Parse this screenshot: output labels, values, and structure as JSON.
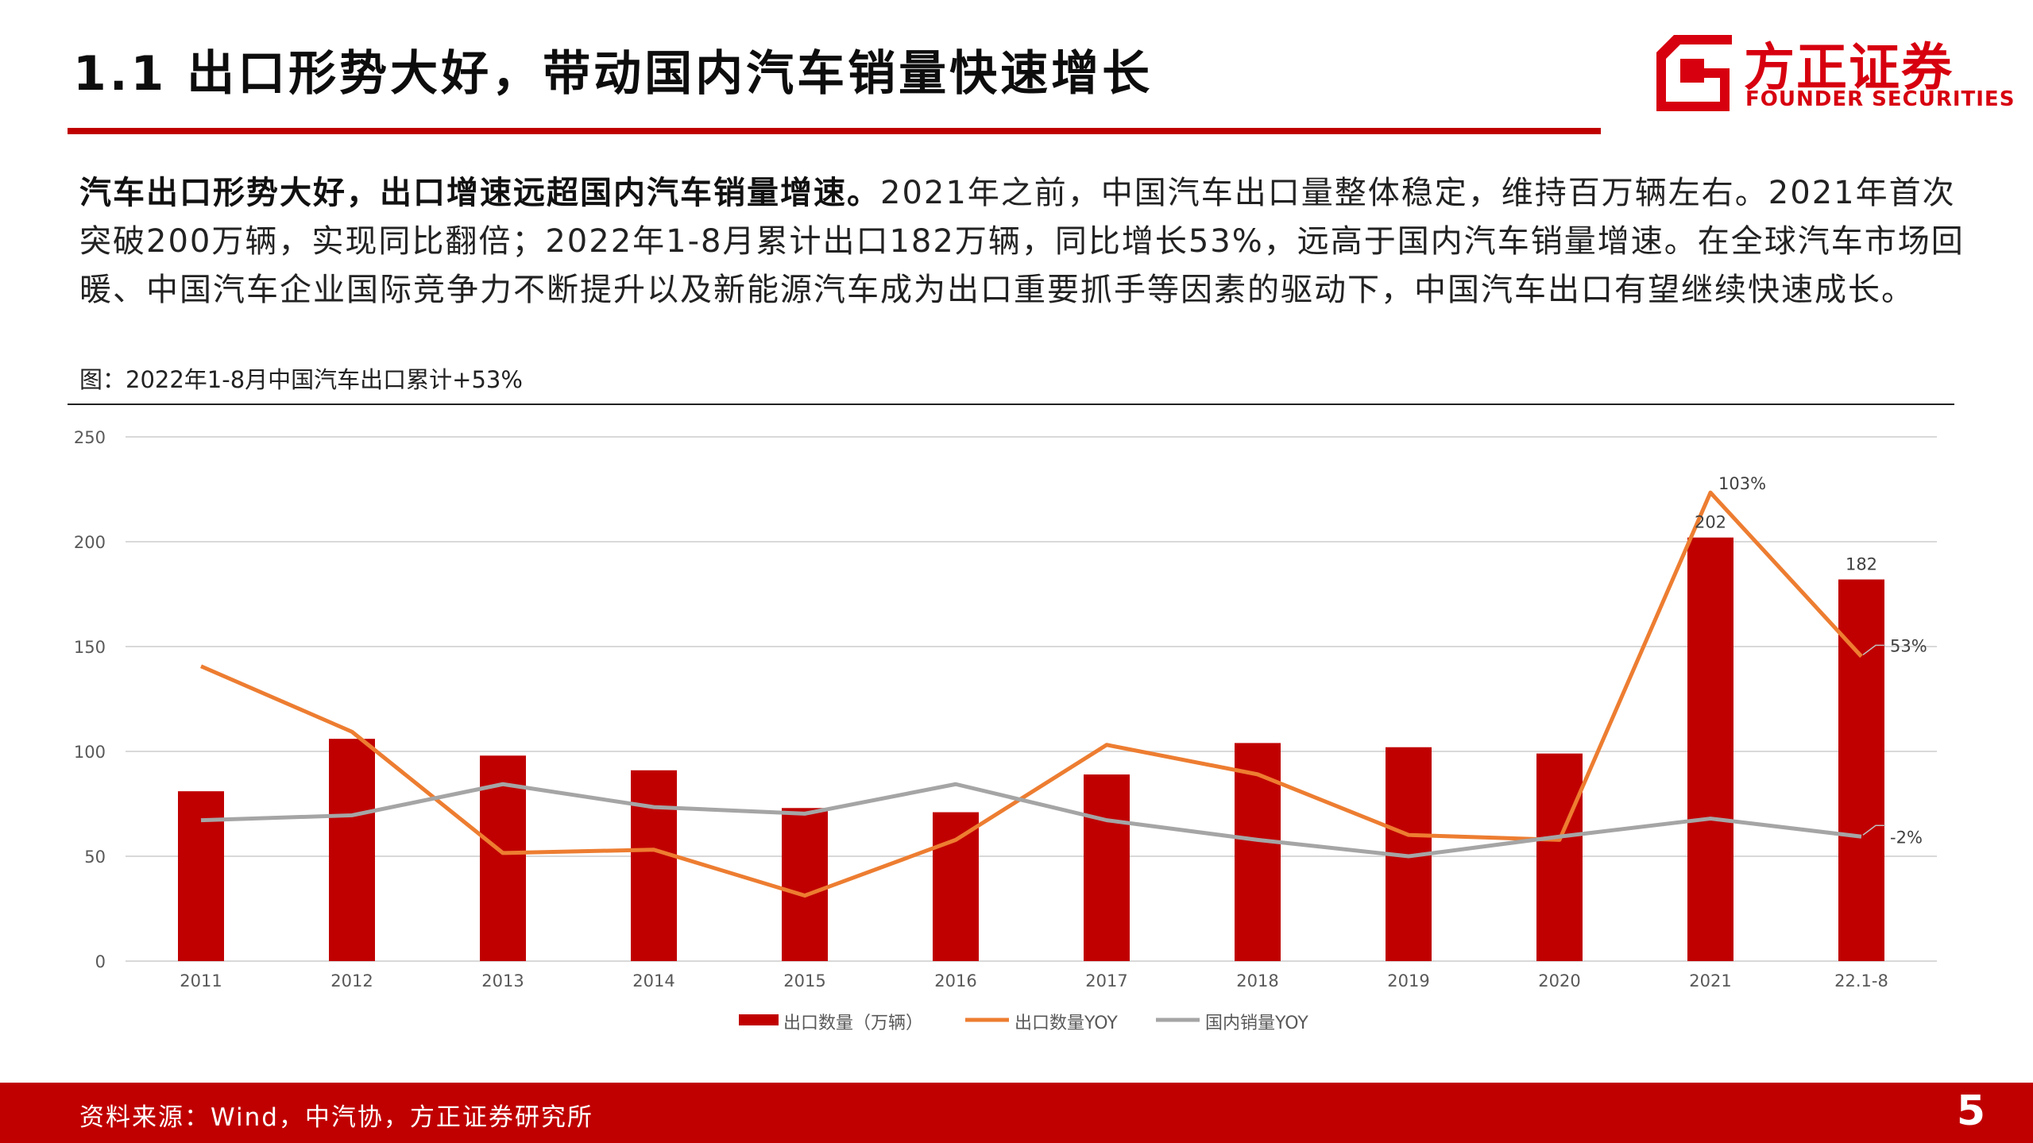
{
  "header": {
    "title": "1.1 出口形势大好，带动国内汽车销量快速增长",
    "logo_cn": "方正证券",
    "logo_en": "FOUNDER SECURITIES"
  },
  "body": {
    "lead_bold": "汽车出口形势大好，出口增速远超国内汽车销量增速。",
    "text": "2021年之前，中国汽车出口量整体稳定，维持百万辆左右。2021年首次突破200万辆，实现同比翻倍；2022年1-8月累计出口182万辆，同比增长53%，远高于国内汽车销量增速。在全球汽车市场回暖、中国汽车企业国际竞争力不断提升以及新能源汽车成为出口重要抓手等因素的驱动下，中国汽车出口有望继续快速成长。"
  },
  "figure": {
    "caption": "图：2022年1-8月中国汽车出口累计+53%"
  },
  "chart_data": {
    "type": "bar",
    "categories": [
      "2011",
      "2012",
      "2013",
      "2014",
      "2015",
      "2016",
      "2017",
      "2018",
      "2019",
      "2020",
      "2021",
      "22.1-8"
    ],
    "series": [
      {
        "name": "出口数量（万辆）",
        "type": "bar",
        "axis": "left",
        "color": "#c00000",
        "values": [
          81,
          106,
          98,
          91,
          73,
          71,
          89,
          104,
          102,
          99,
          202,
          182
        ]
      },
      {
        "name": "出口数量YOY",
        "type": "line",
        "axis": "right",
        "color": "#ed7d31",
        "values": [
          50,
          30,
          -7,
          -6,
          -20,
          -3,
          26,
          17,
          -1.5,
          -3,
          103,
          53
        ]
      },
      {
        "name": "国内销量YOY",
        "type": "line",
        "axis": "right",
        "color": "#a5a5a5",
        "values": [
          3,
          4.5,
          14,
          7,
          5,
          14,
          3,
          -3,
          -8,
          -2,
          3.5,
          -2
        ]
      }
    ],
    "left_axis": {
      "range": [
        0,
        250
      ],
      "ticks": [
        "0",
        "50",
        "100",
        "150",
        "200",
        "250"
      ]
    },
    "right_axis": {
      "range": [
        -40,
        120
      ],
      "ticks": [
        "-40%",
        "-20%",
        "0%",
        "20%",
        "40%",
        "60%",
        "80%",
        "100%",
        "120%"
      ]
    },
    "data_labels": [
      {
        "series": 0,
        "index": 10,
        "text": "202"
      },
      {
        "series": 0,
        "index": 11,
        "text": "182"
      },
      {
        "series": 1,
        "index": 10,
        "text": "103%"
      },
      {
        "series": 1,
        "index": 11,
        "text": "53%"
      },
      {
        "series": 2,
        "index": 11,
        "text": "-2%"
      }
    ],
    "grid": true,
    "legend_position": "bottom"
  },
  "footer": {
    "source": "资料来源：Wind，中汽协，方正证券研究所",
    "page": "5"
  }
}
